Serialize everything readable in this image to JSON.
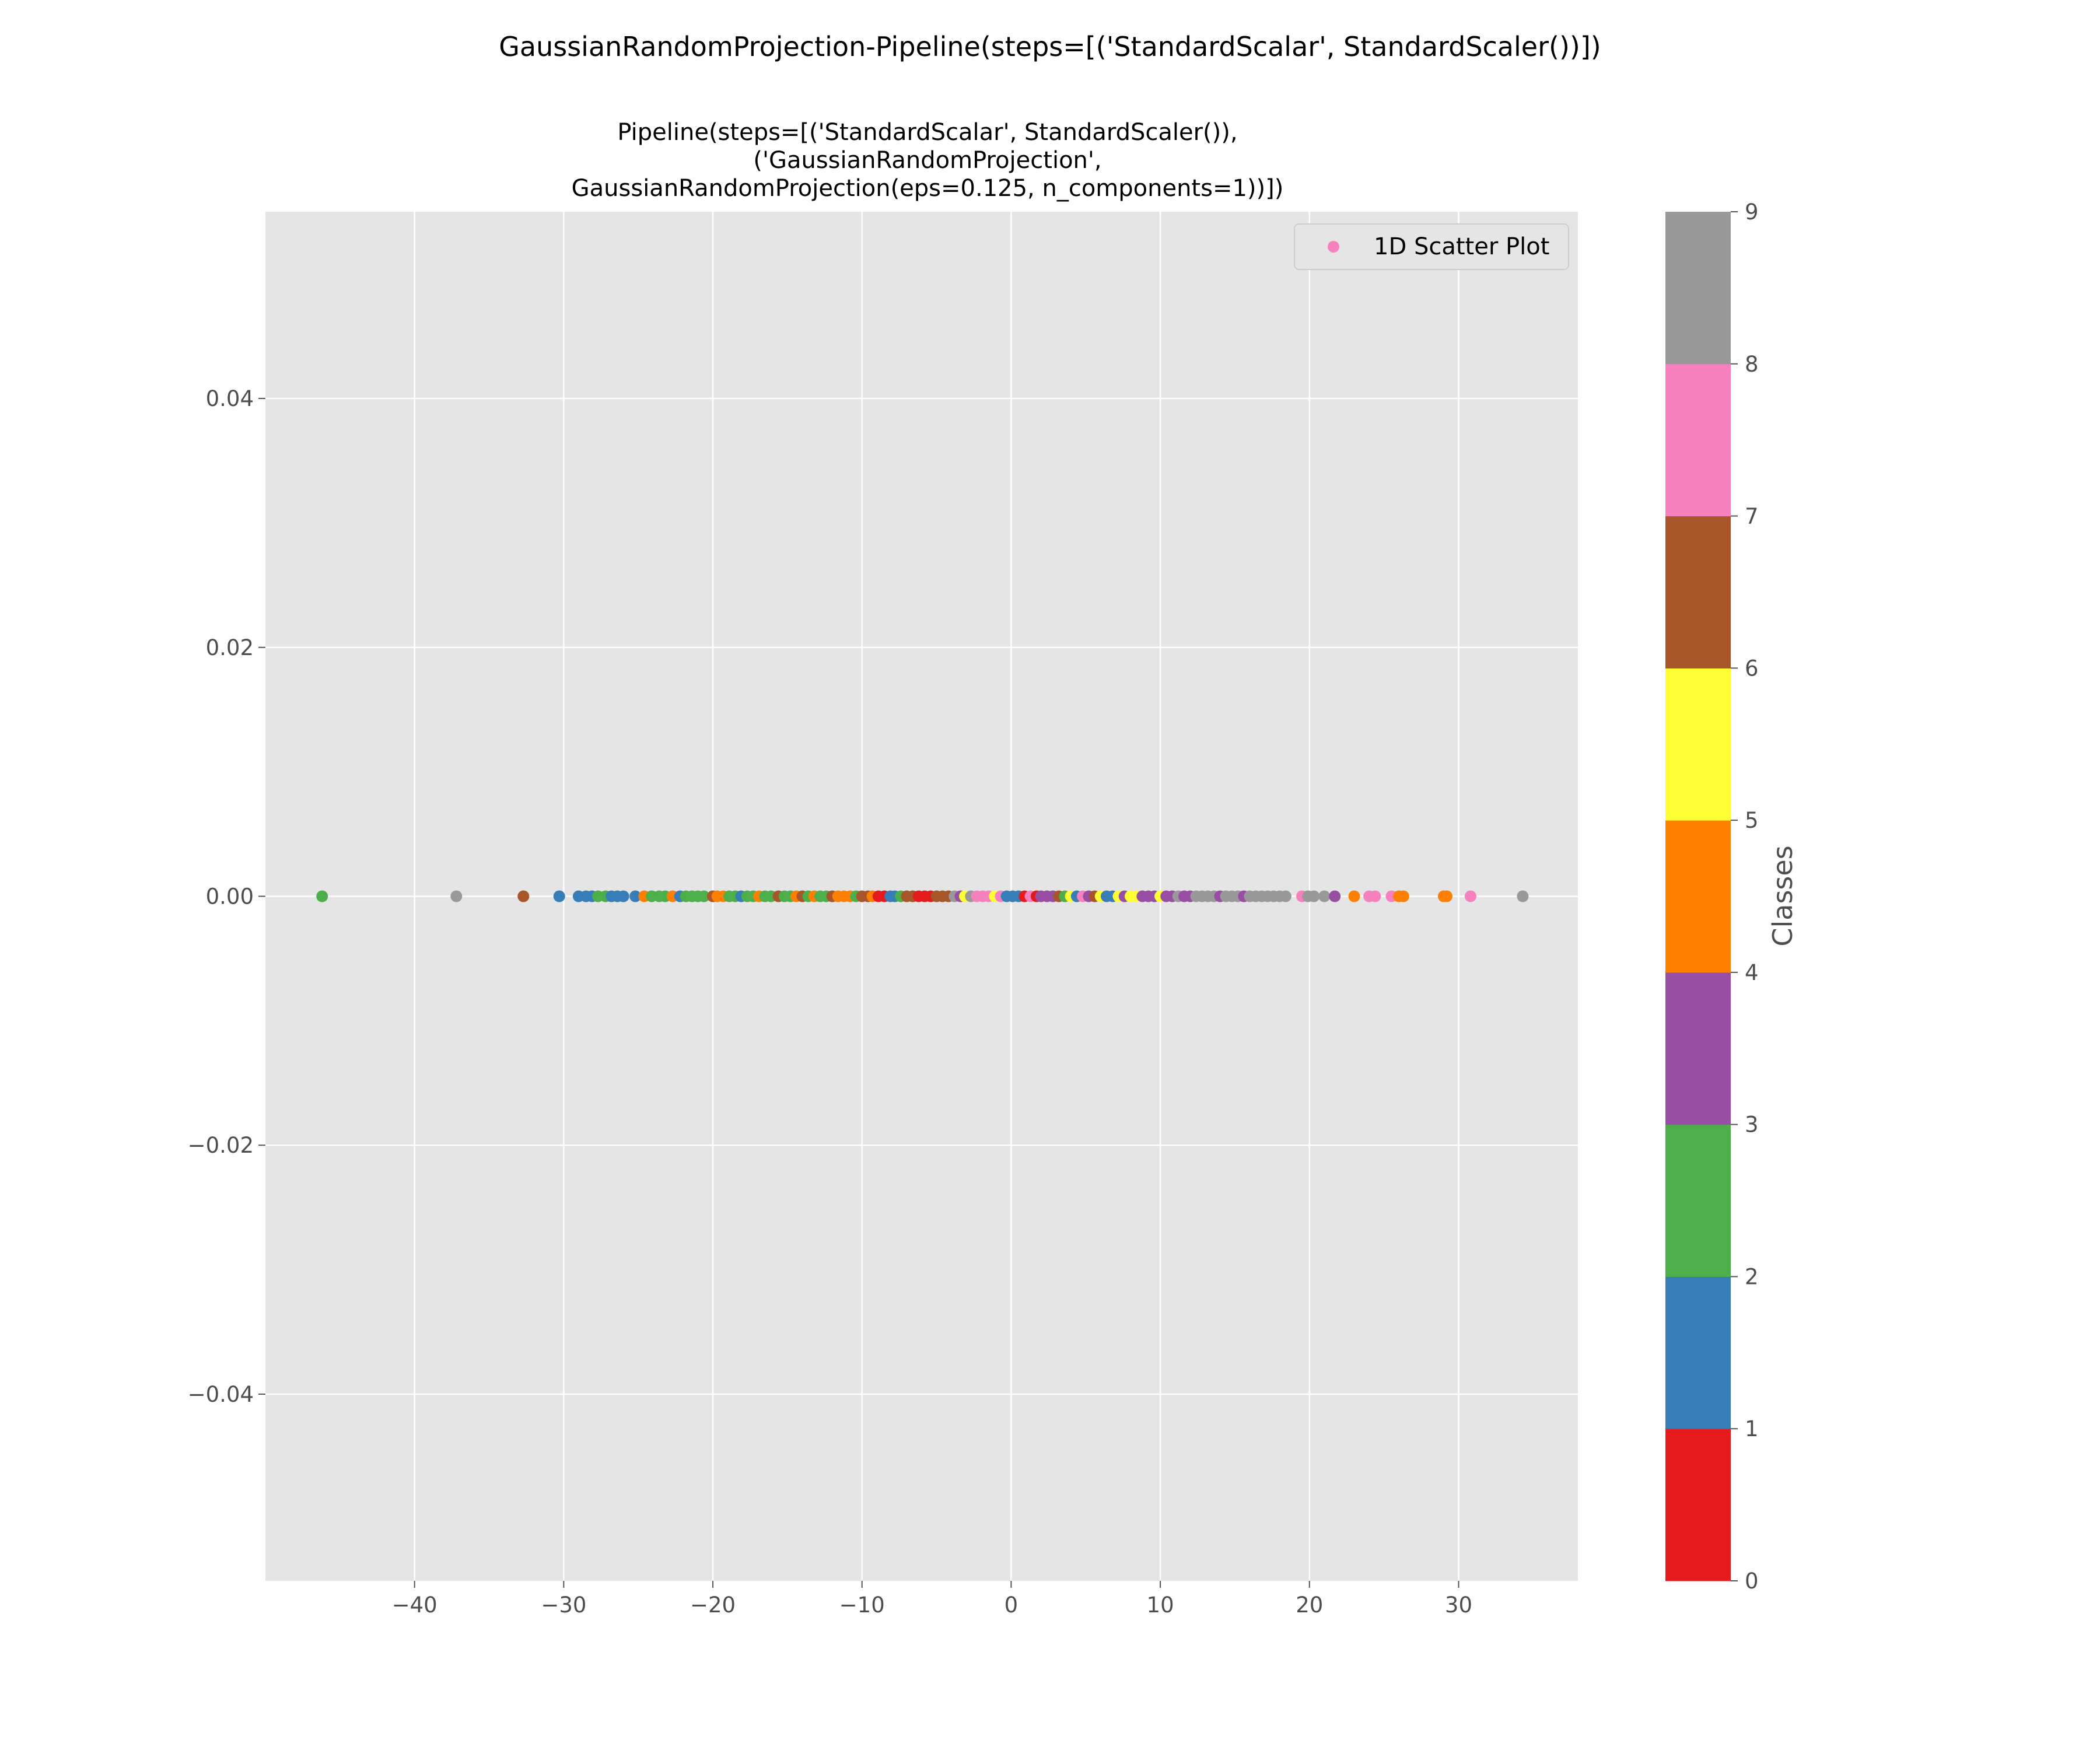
{
  "chart_data": {
    "type": "scatter",
    "suptitle": "GaussianRandomProjection-Pipeline(steps=[('StandardScalar', StandardScaler())])",
    "title_lines": [
      "Pipeline(steps=[('StandardScalar', StandardScaler()),",
      "('GaussianRandomProjection',",
      "GaussianRandomProjection(eps=0.125, n_components=1))])"
    ],
    "xlim": [
      -50,
      38
    ],
    "ylim": [
      -0.055,
      0.055
    ],
    "x_ticks": [
      {
        "value": -40,
        "label": "−40"
      },
      {
        "value": -30,
        "label": "−30"
      },
      {
        "value": -20,
        "label": "−20"
      },
      {
        "value": -10,
        "label": "−10"
      },
      {
        "value": 0,
        "label": "0"
      },
      {
        "value": 10,
        "label": "10"
      },
      {
        "value": 20,
        "label": "20"
      },
      {
        "value": 30,
        "label": "30"
      }
    ],
    "y_ticks": [
      {
        "value": 0.04,
        "label": "0.04"
      },
      {
        "value": 0.02,
        "label": "0.02"
      },
      {
        "value": 0.0,
        "label": "0.00"
      },
      {
        "value": -0.02,
        "label": "−0.02"
      },
      {
        "value": -0.04,
        "label": "−0.04"
      }
    ],
    "grid": true,
    "legend": {
      "label": "1D Scatter Plot",
      "color": "#f781bf",
      "placement": "top-right"
    },
    "colorbar": {
      "label": "Classes",
      "ticks": [
        "0",
        "1",
        "2",
        "3",
        "4",
        "5",
        "6",
        "7",
        "8",
        "9"
      ],
      "colors": [
        "#e41a1c",
        "#377eb8",
        "#4daf4a",
        "#984ea3",
        "#ff7f00",
        "#ffff33",
        "#a65628",
        "#f781bf",
        "#999999"
      ]
    },
    "series": {
      "y": 0,
      "points": [
        [
          -46.2,
          2
        ],
        [
          -37.2,
          8
        ],
        [
          -32.7,
          6
        ],
        [
          -30.3,
          1
        ],
        [
          -29.0,
          1
        ],
        [
          -28.5,
          1
        ],
        [
          -28.1,
          1
        ],
        [
          -27.7,
          2
        ],
        [
          -27.2,
          2
        ],
        [
          -26.8,
          1
        ],
        [
          -26.4,
          1
        ],
        [
          -26.0,
          1
        ],
        [
          -25.2,
          1
        ],
        [
          -24.6,
          4
        ],
        [
          -24.1,
          2
        ],
        [
          -23.6,
          2
        ],
        [
          -23.2,
          2
        ],
        [
          -22.7,
          4
        ],
        [
          -22.2,
          1
        ],
        [
          -21.8,
          2
        ],
        [
          -21.4,
          2
        ],
        [
          -21.0,
          2
        ],
        [
          -20.6,
          2
        ],
        [
          -20.0,
          6
        ],
        [
          -19.7,
          4
        ],
        [
          -19.3,
          4
        ],
        [
          -18.9,
          2
        ],
        [
          -18.5,
          2
        ],
        [
          -18.1,
          1
        ],
        [
          -17.7,
          2
        ],
        [
          -17.3,
          2
        ],
        [
          -16.9,
          4
        ],
        [
          -16.5,
          2
        ],
        [
          -16.1,
          2
        ],
        [
          -15.6,
          6
        ],
        [
          -15.2,
          2
        ],
        [
          -14.8,
          2
        ],
        [
          -14.4,
          4
        ],
        [
          -14.0,
          6
        ],
        [
          -13.6,
          2
        ],
        [
          -13.2,
          4
        ],
        [
          -12.8,
          2
        ],
        [
          -12.4,
          2
        ],
        [
          -12.0,
          6
        ],
        [
          -11.6,
          4
        ],
        [
          -11.2,
          4
        ],
        [
          -10.8,
          4
        ],
        [
          -10.4,
          2
        ],
        [
          -10.0,
          6
        ],
        [
          -9.6,
          6
        ],
        [
          -9.3,
          4
        ],
        [
          -8.9,
          0
        ],
        [
          -8.5,
          0
        ],
        [
          -8.1,
          1
        ],
        [
          -7.8,
          1
        ],
        [
          -7.4,
          2
        ],
        [
          -7.0,
          6
        ],
        [
          -6.6,
          6
        ],
        [
          -6.2,
          0
        ],
        [
          -5.8,
          0
        ],
        [
          -5.4,
          0
        ],
        [
          -5.0,
          6
        ],
        [
          -4.6,
          6
        ],
        [
          -4.2,
          6
        ],
        [
          -3.8,
          8
        ],
        [
          -3.4,
          3
        ],
        [
          -3.1,
          5
        ],
        [
          -2.7,
          8
        ],
        [
          -2.3,
          7
        ],
        [
          -1.9,
          7
        ],
        [
          -1.5,
          7
        ],
        [
          -1.1,
          5
        ],
        [
          -0.7,
          7
        ],
        [
          -0.3,
          1
        ],
        [
          0.1,
          1
        ],
        [
          0.5,
          1
        ],
        [
          0.9,
          0
        ],
        [
          1.3,
          7
        ],
        [
          1.7,
          0
        ],
        [
          2.0,
          3
        ],
        [
          2.4,
          3
        ],
        [
          2.8,
          3
        ],
        [
          3.2,
          6
        ],
        [
          3.6,
          2
        ],
        [
          4.0,
          5
        ],
        [
          4.4,
          1
        ],
        [
          4.8,
          7
        ],
        [
          5.2,
          3
        ],
        [
          5.6,
          6
        ],
        [
          6.0,
          5
        ],
        [
          6.4,
          1
        ],
        [
          6.8,
          1
        ],
        [
          7.2,
          5
        ],
        [
          7.6,
          3
        ],
        [
          8.0,
          5
        ],
        [
          8.4,
          5
        ],
        [
          8.8,
          3
        ],
        [
          9.2,
          3
        ],
        [
          9.6,
          3
        ],
        [
          10.0,
          5
        ],
        [
          10.4,
          3
        ],
        [
          10.8,
          3
        ],
        [
          11.2,
          8
        ],
        [
          11.6,
          3
        ],
        [
          12.0,
          3
        ],
        [
          12.4,
          8
        ],
        [
          12.8,
          8
        ],
        [
          13.2,
          8
        ],
        [
          13.6,
          8
        ],
        [
          14.0,
          3
        ],
        [
          14.4,
          8
        ],
        [
          14.8,
          8
        ],
        [
          15.2,
          8
        ],
        [
          15.6,
          3
        ],
        [
          16.0,
          8
        ],
        [
          16.4,
          8
        ],
        [
          16.8,
          8
        ],
        [
          17.2,
          8
        ],
        [
          17.6,
          8
        ],
        [
          18.0,
          8
        ],
        [
          18.4,
          8
        ],
        [
          19.5,
          7
        ],
        [
          19.9,
          8
        ],
        [
          20.3,
          8
        ],
        [
          21.0,
          8
        ],
        [
          21.7,
          3
        ],
        [
          23.0,
          4
        ],
        [
          24.0,
          7
        ],
        [
          24.4,
          7
        ],
        [
          25.5,
          7
        ],
        [
          26.0,
          4
        ],
        [
          26.3,
          4
        ],
        [
          29.0,
          4
        ],
        [
          29.2,
          4
        ],
        [
          30.8,
          7
        ],
        [
          34.3,
          8
        ]
      ]
    }
  }
}
